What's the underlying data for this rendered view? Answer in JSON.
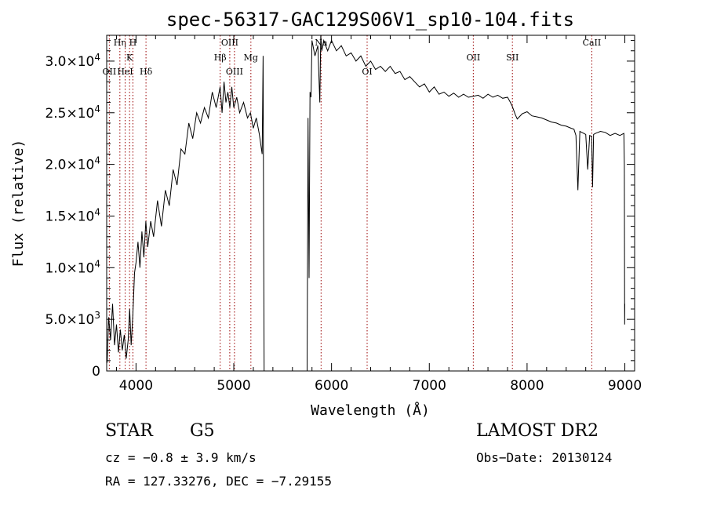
{
  "chart_data": {
    "type": "line",
    "title": "spec-56317-GAC129S06V1_sp10-104.fits",
    "xlabel": "Wavelength (Å)",
    "ylabel": "Flux (relative)",
    "xlim": [
      3700,
      9100
    ],
    "ylim": [
      0,
      32500
    ],
    "x_ticks": [
      {
        "value": 4000,
        "label": "4000"
      },
      {
        "value": 5000,
        "label": "5000"
      },
      {
        "value": 6000,
        "label": "6000"
      },
      {
        "value": 7000,
        "label": "7000"
      },
      {
        "value": 8000,
        "label": "8000"
      },
      {
        "value": 9000,
        "label": "9000"
      }
    ],
    "y_ticks": [
      {
        "value": 0,
        "label": "0"
      },
      {
        "value": 5000,
        "label": "5.0×10",
        "exp": "3"
      },
      {
        "value": 10000,
        "label": "1.0×10",
        "exp": "4"
      },
      {
        "value": 15000,
        "label": "1.5×10",
        "exp": "4"
      },
      {
        "value": 20000,
        "label": "2.0×10",
        "exp": "4"
      },
      {
        "value": 25000,
        "label": "2.5×10",
        "exp": "4"
      },
      {
        "value": 30000,
        "label": "3.0×10",
        "exp": "4"
      }
    ],
    "series": [
      {
        "color": "#000000",
        "x": [
          3705,
          3720,
          3740,
          3760,
          3780,
          3800,
          3820,
          3840,
          3860,
          3880,
          3900,
          3920,
          3935,
          3950,
          3968,
          3985,
          4000,
          4020,
          4040,
          4060,
          4080,
          4100,
          4120,
          4150,
          4180,
          4220,
          4260,
          4300,
          4340,
          4380,
          4420,
          4460,
          4500,
          4540,
          4580,
          4620,
          4660,
          4700,
          4740,
          4780,
          4820,
          4860,
          4880,
          4900,
          4920,
          4940,
          4960,
          4980,
          5000,
          5030,
          5060,
          5100,
          5140,
          5170,
          5200,
          5230,
          5260,
          5290,
          5300,
          5305,
          5310,
          5750,
          5760,
          5770,
          5780,
          5790,
          5800,
          5830,
          5860,
          5880,
          5890,
          5900,
          5920,
          5960,
          6000,
          6050,
          6100,
          6150,
          6200,
          6250,
          6300,
          6350,
          6400,
          6450,
          6500,
          6550,
          6600,
          6650,
          6700,
          6750,
          6800,
          6850,
          6900,
          6950,
          7000,
          7050,
          7100,
          7150,
          7200,
          7250,
          7300,
          7350,
          7400,
          7450,
          7500,
          7550,
          7600,
          7650,
          7700,
          7750,
          7800,
          7830,
          7850,
          7880,
          7900,
          7950,
          8000,
          8050,
          8100,
          8150,
          8200,
          8250,
          8300,
          8350,
          8400,
          8450,
          8480,
          8500,
          8520,
          8540,
          8560,
          8580,
          8600,
          8620,
          8640,
          8660,
          8670,
          8680,
          8700,
          8750,
          8800,
          8850,
          8900,
          8950,
          8990,
          8995,
          8998,
          9000
        ],
        "y": [
          800,
          5200,
          3000,
          6500,
          2500,
          4500,
          1800,
          4000,
          2000,
          3500,
          1200,
          3000,
          6000,
          2500,
          5500,
          9500,
          10500,
          12500,
          10000,
          13500,
          11000,
          14500,
          12000,
          14500,
          13000,
          16500,
          14000,
          17500,
          16000,
          19500,
          18000,
          21500,
          21000,
          24000,
          22500,
          25000,
          24000,
          25500,
          24500,
          27000,
          25500,
          27500,
          25000,
          28000,
          26000,
          27000,
          25500,
          27500,
          25500,
          26500,
          25000,
          26000,
          24500,
          25000,
          23500,
          24500,
          23000,
          21000,
          30500,
          15000,
          0,
          0,
          24500,
          9000,
          27000,
          26500,
          32000,
          30500,
          31500,
          26000,
          32500,
          31000,
          32000,
          31000,
          32000,
          31000,
          31500,
          30500,
          30800,
          30000,
          30500,
          29500,
          30000,
          29200,
          29500,
          29000,
          29500,
          28800,
          29000,
          28200,
          28500,
          28000,
          27500,
          27800,
          27000,
          27500,
          26800,
          27000,
          26600,
          26900,
          26500,
          26800,
          26500,
          26600,
          26700,
          26400,
          26800,
          26500,
          26700,
          26400,
          26500,
          26000,
          25600,
          24800,
          24400,
          24900,
          25100,
          24700,
          24600,
          24500,
          24300,
          24100,
          24000,
          23800,
          23700,
          23500,
          23400,
          22800,
          17500,
          23200,
          23100,
          23000,
          22900,
          19500,
          22800,
          22700,
          17800,
          22900,
          23000,
          23200,
          23100,
          22800,
          23000,
          22800,
          23000,
          20000,
          4500,
          6500
        ]
      }
    ],
    "line_markers": [
      {
        "label": "OII",
        "x": 3727,
        "label_row": 3
      },
      {
        "label": "Hη",
        "x": 3835,
        "label_row": 1
      },
      {
        "label": "HeI",
        "x": 3889,
        "label_row": 3
      },
      {
        "label": "K",
        "x": 3934,
        "label_row": 2
      },
      {
        "label": "H",
        "x": 3968,
        "label_row": 1
      },
      {
        "label": "Hδ",
        "x": 4102,
        "label_row": 3
      },
      {
        "label": "Hβ",
        "x": 4861,
        "label_row": 2
      },
      {
        "label": "OIII",
        "x": 4959,
        "label_row": 1
      },
      {
        "label": "OIII",
        "x": 5007,
        "label_row": 3
      },
      {
        "label": "Mg",
        "x": 5175,
        "label_row": 2
      },
      {
        "label": "Na",
        "x": 5893,
        "label_row": 1
      },
      {
        "label": "OI",
        "x": 6364,
        "label_row": 3
      },
      {
        "label": "OII",
        "x": 7450,
        "label_row": 2
      },
      {
        "label": "SII",
        "x": 7850,
        "label_row": 2
      },
      {
        "label": "CaII",
        "x": 8662,
        "label_row": 1
      }
    ],
    "marker_color": "#990000",
    "grid": false,
    "legend": "none"
  },
  "footer": {
    "object_class": "STAR",
    "subclass": "G5",
    "release": "LAMOST DR2",
    "cz": "cz = −0.8 ± 3.9 km/s",
    "obs_date": "Obs−Date: 20130124",
    "coords": "RA = 127.33276, DEC =  −7.29155"
  }
}
